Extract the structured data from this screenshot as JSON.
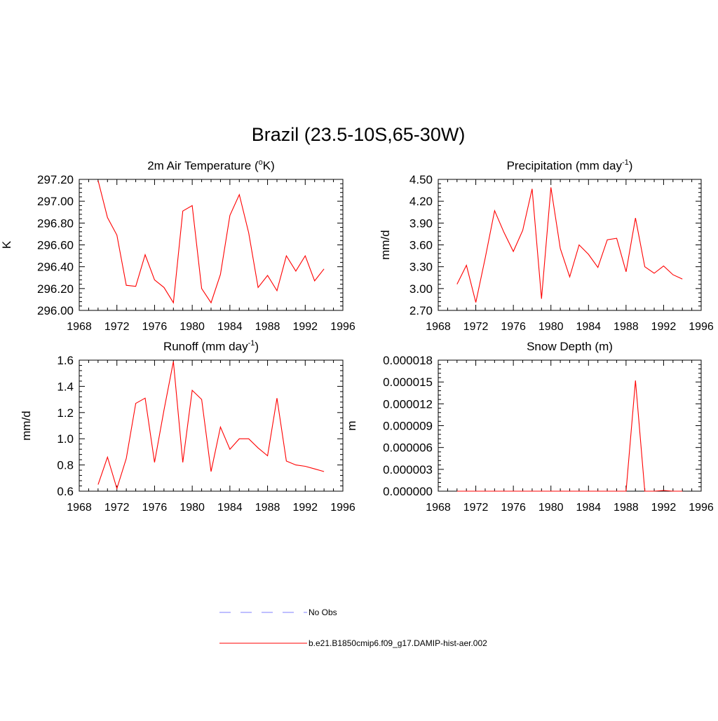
{
  "title": "Brazil (23.5-10S,65-30W)",
  "colors": {
    "model_line": "#ff0000",
    "obs_line": "#9999ff",
    "axis": "#000000"
  },
  "legend": [
    {
      "label": "No Obs",
      "style": "dashed",
      "color": "#9999ff"
    },
    {
      "label": "b.e21.B1850cmip6.f09_g17.DAMIP-hist-aer.002",
      "style": "solid",
      "color": "#ff0000"
    }
  ],
  "chart_data": [
    {
      "type": "line",
      "title": "2m Air Temperature (",
      "title_sup": "o",
      "title_after": "K)",
      "title_sup2": "",
      "title_after2": "",
      "xlabel": "",
      "ylabel": "K",
      "xlim": [
        1968,
        1996
      ],
      "ylim": [
        296.0,
        297.2
      ],
      "xticks": [
        1968,
        1972,
        1976,
        1980,
        1984,
        1988,
        1992,
        1996
      ],
      "yticks": [
        "296.00",
        "296.20",
        "296.40",
        "296.60",
        "296.80",
        "297.00",
        "297.20"
      ],
      "x": [
        1970,
        1971,
        1972,
        1973,
        1974,
        1975,
        1976,
        1977,
        1978,
        1979,
        1980,
        1981,
        1982,
        1983,
        1984,
        1985,
        1986,
        1987,
        1988,
        1989,
        1990,
        1991,
        1992,
        1993,
        1994
      ],
      "series": [
        {
          "values": [
            297.19,
            296.85,
            296.69,
            296.23,
            296.22,
            296.51,
            296.28,
            296.21,
            296.07,
            296.91,
            296.96,
            296.2,
            296.07,
            296.33,
            296.87,
            297.06,
            296.71,
            296.21,
            296.32,
            296.18,
            296.5,
            296.36,
            296.5,
            296.27,
            296.38
          ]
        }
      ]
    },
    {
      "type": "line",
      "title": "Precipitation (mm day",
      "title_sup": "-1",
      "title_after": ")",
      "xlabel": "",
      "ylabel": "mm/d",
      "xlim": [
        1968,
        1996
      ],
      "ylim": [
        2.7,
        4.5
      ],
      "xticks": [
        1968,
        1972,
        1976,
        1980,
        1984,
        1988,
        1992,
        1996
      ],
      "yticks": [
        "2.70",
        "3.00",
        "3.30",
        "3.60",
        "3.90",
        "4.20",
        "4.50"
      ],
      "x": [
        1970,
        1971,
        1972,
        1973,
        1974,
        1975,
        1976,
        1977,
        1978,
        1979,
        1980,
        1981,
        1982,
        1983,
        1984,
        1985,
        1986,
        1987,
        1988,
        1989,
        1990,
        1991,
        1992,
        1993,
        1994
      ],
      "series": [
        {
          "values": [
            3.06,
            3.32,
            2.81,
            3.42,
            4.07,
            3.77,
            3.51,
            3.8,
            4.37,
            2.86,
            4.39,
            3.55,
            3.16,
            3.6,
            3.47,
            3.29,
            3.67,
            3.69,
            3.23,
            3.97,
            3.3,
            3.21,
            3.31,
            3.19,
            3.13
          ]
        }
      ]
    },
    {
      "type": "line",
      "title": "Runoff (mm day",
      "title_sup": "-1",
      "title_after": ")",
      "xlabel": "",
      "ylabel": "mm/d",
      "xlim": [
        1968,
        1996
      ],
      "ylim": [
        0.6,
        1.6
      ],
      "xticks": [
        1968,
        1972,
        1976,
        1980,
        1984,
        1988,
        1992,
        1996
      ],
      "yticks": [
        "0.6",
        "0.8",
        "1.0",
        "1.2",
        "1.4",
        "1.6"
      ],
      "x": [
        1970,
        1971,
        1972,
        1973,
        1974,
        1975,
        1976,
        1977,
        1978,
        1979,
        1980,
        1981,
        1982,
        1983,
        1984,
        1985,
        1986,
        1987,
        1988,
        1989,
        1990,
        1991,
        1992,
        1993,
        1994
      ],
      "series": [
        {
          "values": [
            0.65,
            0.86,
            0.62,
            0.85,
            1.27,
            1.31,
            0.82,
            1.22,
            1.59,
            0.82,
            1.37,
            1.3,
            0.75,
            1.09,
            0.92,
            1.0,
            1.0,
            0.93,
            0.87,
            1.31,
            0.83,
            0.8,
            0.79,
            0.77,
            0.75
          ]
        }
      ]
    },
    {
      "type": "line",
      "title": "Snow Depth (m)",
      "title_sup": "",
      "title_after": "",
      "xlabel": "",
      "ylabel": "m",
      "xlim": [
        1968,
        1996
      ],
      "ylim": [
        0,
        1.8e-05
      ],
      "xticks": [
        1968,
        1972,
        1976,
        1980,
        1984,
        1988,
        1992,
        1996
      ],
      "yticks": [
        "0.000000",
        "0.000003",
        "0.000006",
        "0.000009",
        "0.000012",
        "0.000015",
        "0.000018"
      ],
      "x": [
        1970,
        1971,
        1972,
        1973,
        1974,
        1975,
        1976,
        1977,
        1978,
        1979,
        1980,
        1981,
        1982,
        1983,
        1984,
        1985,
        1986,
        1987,
        1988,
        1989,
        1990,
        1991,
        1992,
        1993,
        1994
      ],
      "series": [
        {
          "values": [
            0,
            0,
            0,
            0,
            0,
            0,
            0,
            0,
            0,
            0,
            0,
            0,
            0,
            0,
            0,
            0,
            0,
            0,
            0,
            1.52e-05,
            0,
            0,
            1e-07,
            0,
            0
          ]
        }
      ]
    }
  ]
}
